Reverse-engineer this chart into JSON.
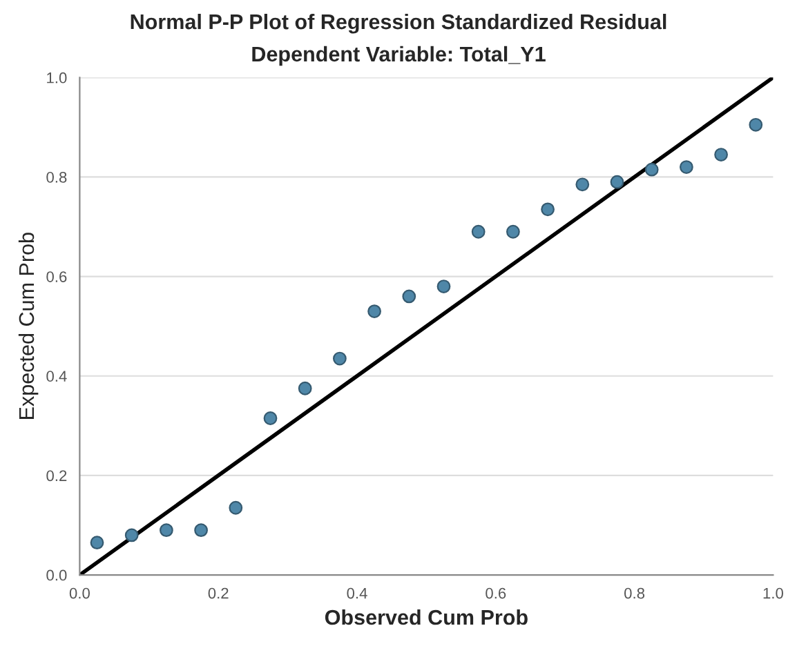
{
  "chart_data": {
    "type": "scatter",
    "title": "Normal P-P Plot of Regression Standardized Residual",
    "subtitle": "Dependent Variable: Total_Y1",
    "xlabel": "Observed Cum Prob",
    "ylabel": "Expected Cum Prob",
    "series": [
      {
        "color": "#4f87a8",
        "marker": "circle",
        "x": [
          0.025,
          0.075,
          0.125,
          0.175,
          0.225,
          0.275,
          0.325,
          0.375,
          0.425,
          0.475,
          0.525,
          0.575,
          0.625,
          0.675,
          0.725,
          0.775,
          0.825,
          0.875,
          0.925,
          0.975
        ],
        "values": [
          0.065,
          0.08,
          0.09,
          0.09,
          0.135,
          0.315,
          0.375,
          0.435,
          0.53,
          0.56,
          0.58,
          0.69,
          0.69,
          0.735,
          0.785,
          0.79,
          0.815,
          0.82,
          0.845,
          0.905
        ]
      },
      {
        "type": "line",
        "color": "#000000",
        "x": [
          0,
          1
        ],
        "values": [
          0,
          1
        ]
      }
    ],
    "xlim": [
      0,
      1
    ],
    "ylim": [
      0,
      1
    ],
    "xticks": [
      {
        "value": 0,
        "label": "0.0"
      },
      {
        "value": 0.2,
        "label": "0.2"
      },
      {
        "value": 0.4,
        "label": "0.4"
      },
      {
        "value": 0.6,
        "label": "0.6"
      },
      {
        "value": 0.8,
        "label": "0.8"
      },
      {
        "value": 1,
        "label": "1.0"
      }
    ],
    "yticks": [
      {
        "value": 0,
        "label": "0.0"
      },
      {
        "value": 0.2,
        "label": "0.2"
      },
      {
        "value": 0.4,
        "label": "0.4"
      },
      {
        "value": 0.6,
        "label": "0.6"
      },
      {
        "value": 0.8,
        "label": "0.8"
      },
      {
        "value": 1,
        "label": "1.0"
      }
    ],
    "grid": "y"
  }
}
